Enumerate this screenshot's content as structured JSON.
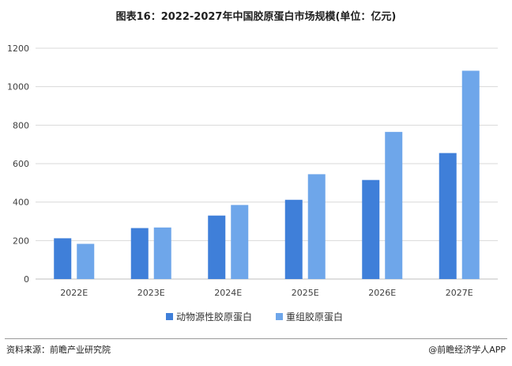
{
  "title": "图表16：2022-2027年中国胶原蛋白市场规模(单位：亿元)",
  "source": "资料来源：前瞻产业研究院",
  "brand": "@前瞻经济学人APP",
  "colors": {
    "series1": "#3f7fd9",
    "series2": "#6ea6ea",
    "grid": "#d9d9d9",
    "axis": "#bfbfbf"
  },
  "chart_data": {
    "type": "bar",
    "categories": [
      "2022E",
      "2023E",
      "2024E",
      "2025E",
      "2026E",
      "2027E"
    ],
    "series": [
      {
        "name": "动物源性胶原蛋白",
        "values": [
          212,
          265,
          330,
          412,
          515,
          655
        ]
      },
      {
        "name": "重组胶原蛋白",
        "values": [
          183,
          268,
          385,
          545,
          765,
          1083
        ]
      }
    ],
    "yticks": [
      0,
      200,
      400,
      600,
      800,
      1000,
      1200
    ],
    "ylim": [
      0,
      1200
    ],
    "grid": true,
    "legend": "bottom",
    "title": "",
    "xlabel": "",
    "ylabel": ""
  }
}
